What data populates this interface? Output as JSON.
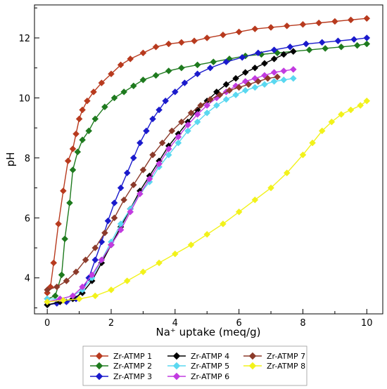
{
  "chart_data": {
    "type": "line",
    "xlabel": "Na⁺ uptake (meq/g)",
    "ylabel": "pH",
    "xlim": [
      -0.4,
      10.5
    ],
    "ylim": [
      2.8,
      13.1
    ],
    "xticks": [
      0,
      2,
      4,
      6,
      8,
      10
    ],
    "yticks": [
      4,
      6,
      8,
      10,
      12
    ],
    "grid": false,
    "legend_position": "bottom",
    "marker": "diamond",
    "series": [
      {
        "name": "Zr-ATMP 1",
        "color": "#b83a1e",
        "x": [
          0,
          0.1,
          0.2,
          0.35,
          0.5,
          0.65,
          0.8,
          0.9,
          1.0,
          1.1,
          1.25,
          1.45,
          1.7,
          2.0,
          2.3,
          2.6,
          3.0,
          3.4,
          3.8,
          4.2,
          4.6,
          5.0,
          5.5,
          6.0,
          6.5,
          7.0,
          7.5,
          8.0,
          8.5,
          9.0,
          9.5,
          10.0
        ],
        "y": [
          3.5,
          3.7,
          4.5,
          5.8,
          6.9,
          7.9,
          8.3,
          8.8,
          9.3,
          9.6,
          9.9,
          10.2,
          10.5,
          10.8,
          11.1,
          11.3,
          11.5,
          11.7,
          11.8,
          11.85,
          11.9,
          12.0,
          12.1,
          12.2,
          12.3,
          12.35,
          12.4,
          12.45,
          12.5,
          12.55,
          12.6,
          12.65
        ]
      },
      {
        "name": "Zr-ATMP 2",
        "color": "#1e7a1e",
        "x": [
          0,
          0.25,
          0.45,
          0.55,
          0.7,
          0.8,
          0.95,
          1.1,
          1.3,
          1.5,
          1.8,
          2.1,
          2.4,
          2.7,
          3.0,
          3.4,
          3.8,
          4.2,
          4.7,
          5.2,
          5.7,
          6.2,
          6.7,
          7.2,
          7.7,
          8.2,
          8.7,
          9.2,
          9.7,
          10.0
        ],
        "y": [
          3.3,
          3.4,
          4.1,
          5.3,
          6.5,
          7.6,
          8.2,
          8.6,
          8.9,
          9.3,
          9.7,
          10.0,
          10.2,
          10.4,
          10.6,
          10.75,
          10.9,
          11.0,
          11.1,
          11.2,
          11.3,
          11.4,
          11.45,
          11.5,
          11.55,
          11.6,
          11.65,
          11.7,
          11.75,
          11.8
        ]
      },
      {
        "name": "Zr-ATMP 3",
        "color": "#1a1acc",
        "x": [
          0,
          0.3,
          0.6,
          0.9,
          1.1,
          1.3,
          1.5,
          1.7,
          1.9,
          2.1,
          2.3,
          2.5,
          2.7,
          2.9,
          3.1,
          3.3,
          3.5,
          3.7,
          4.0,
          4.3,
          4.7,
          5.1,
          5.6,
          6.1,
          6.6,
          7.1,
          7.6,
          8.1,
          8.6,
          9.1,
          9.6,
          10.0
        ],
        "y": [
          3.1,
          3.15,
          3.2,
          3.3,
          3.6,
          4.0,
          4.6,
          5.2,
          5.9,
          6.5,
          7.0,
          7.5,
          8.0,
          8.5,
          8.9,
          9.3,
          9.6,
          9.9,
          10.2,
          10.5,
          10.8,
          11.0,
          11.2,
          11.35,
          11.5,
          11.6,
          11.7,
          11.8,
          11.85,
          11.9,
          11.95,
          12.0
        ]
      },
      {
        "name": "Zr-ATMP 4",
        "color": "#000000",
        "x": [
          0,
          0.4,
          0.8,
          1.1,
          1.4,
          1.7,
          2.0,
          2.3,
          2.6,
          2.9,
          3.2,
          3.5,
          3.8,
          4.1,
          4.4,
          4.7,
          5.0,
          5.3,
          5.6,
          5.9,
          6.2,
          6.5,
          6.8,
          7.1,
          7.4,
          7.7
        ],
        "y": [
          3.1,
          3.2,
          3.3,
          3.5,
          3.9,
          4.5,
          5.1,
          5.7,
          6.3,
          6.9,
          7.4,
          7.9,
          8.4,
          8.8,
          9.2,
          9.6,
          9.9,
          10.2,
          10.45,
          10.65,
          10.85,
          11.0,
          11.15,
          11.3,
          11.45,
          11.55
        ]
      },
      {
        "name": "Zr-ATMP 5",
        "color": "#5ad8f0",
        "x": [
          0,
          0.4,
          0.8,
          1.1,
          1.4,
          1.7,
          2.0,
          2.3,
          2.6,
          2.9,
          3.2,
          3.5,
          3.8,
          4.1,
          4.4,
          4.7,
          5.0,
          5.3,
          5.6,
          5.9,
          6.2,
          6.5,
          6.8,
          7.1,
          7.4,
          7.7
        ],
        "y": [
          3.3,
          3.3,
          3.4,
          3.6,
          4.0,
          4.6,
          5.2,
          5.8,
          6.3,
          6.8,
          7.2,
          7.7,
          8.1,
          8.5,
          8.9,
          9.2,
          9.5,
          9.75,
          9.95,
          10.1,
          10.25,
          10.35,
          10.45,
          10.55,
          10.6,
          10.65
        ]
      },
      {
        "name": "Zr-ATMP 6",
        "color": "#c23be0",
        "x": [
          0,
          0.4,
          0.8,
          1.1,
          1.4,
          1.7,
          2.0,
          2.3,
          2.6,
          2.9,
          3.2,
          3.5,
          3.8,
          4.1,
          4.4,
          4.7,
          5.0,
          5.3,
          5.6,
          5.9,
          6.2,
          6.5,
          6.8,
          7.1,
          7.4,
          7.7
        ],
        "y": [
          3.2,
          3.3,
          3.4,
          3.7,
          4.1,
          4.6,
          5.1,
          5.6,
          6.2,
          6.8,
          7.3,
          7.8,
          8.3,
          8.7,
          9.1,
          9.45,
          9.75,
          10.0,
          10.2,
          10.4,
          10.55,
          10.65,
          10.75,
          10.85,
          10.9,
          10.95
        ]
      },
      {
        "name": "Zr-ATMP 7",
        "color": "#8b3a2a",
        "x": [
          0,
          0.3,
          0.6,
          0.9,
          1.2,
          1.5,
          1.8,
          2.1,
          2.4,
          2.7,
          3.0,
          3.3,
          3.6,
          3.9,
          4.2,
          4.5,
          4.8,
          5.1,
          5.4,
          5.7,
          6.0,
          6.3,
          6.6,
          6.9,
          7.2
        ],
        "y": [
          3.6,
          3.7,
          3.9,
          4.2,
          4.6,
          5.0,
          5.5,
          6.0,
          6.6,
          7.1,
          7.6,
          8.1,
          8.5,
          8.9,
          9.2,
          9.5,
          9.75,
          9.95,
          10.1,
          10.25,
          10.35,
          10.45,
          10.55,
          10.65,
          10.7
        ]
      },
      {
        "name": "Zr-ATMP 8",
        "color": "#f2f21a",
        "x": [
          0,
          0.5,
          1.0,
          1.5,
          2.0,
          2.5,
          3.0,
          3.5,
          4.0,
          4.5,
          5.0,
          5.5,
          6.0,
          6.5,
          7.0,
          7.5,
          8.0,
          8.3,
          8.6,
          8.9,
          9.2,
          9.5,
          9.8,
          10.0
        ],
        "y": [
          3.2,
          3.25,
          3.3,
          3.4,
          3.6,
          3.9,
          4.2,
          4.5,
          4.8,
          5.1,
          5.45,
          5.8,
          6.2,
          6.6,
          7.0,
          7.5,
          8.1,
          8.5,
          8.9,
          9.2,
          9.45,
          9.6,
          9.75,
          9.9
        ]
      }
    ]
  }
}
